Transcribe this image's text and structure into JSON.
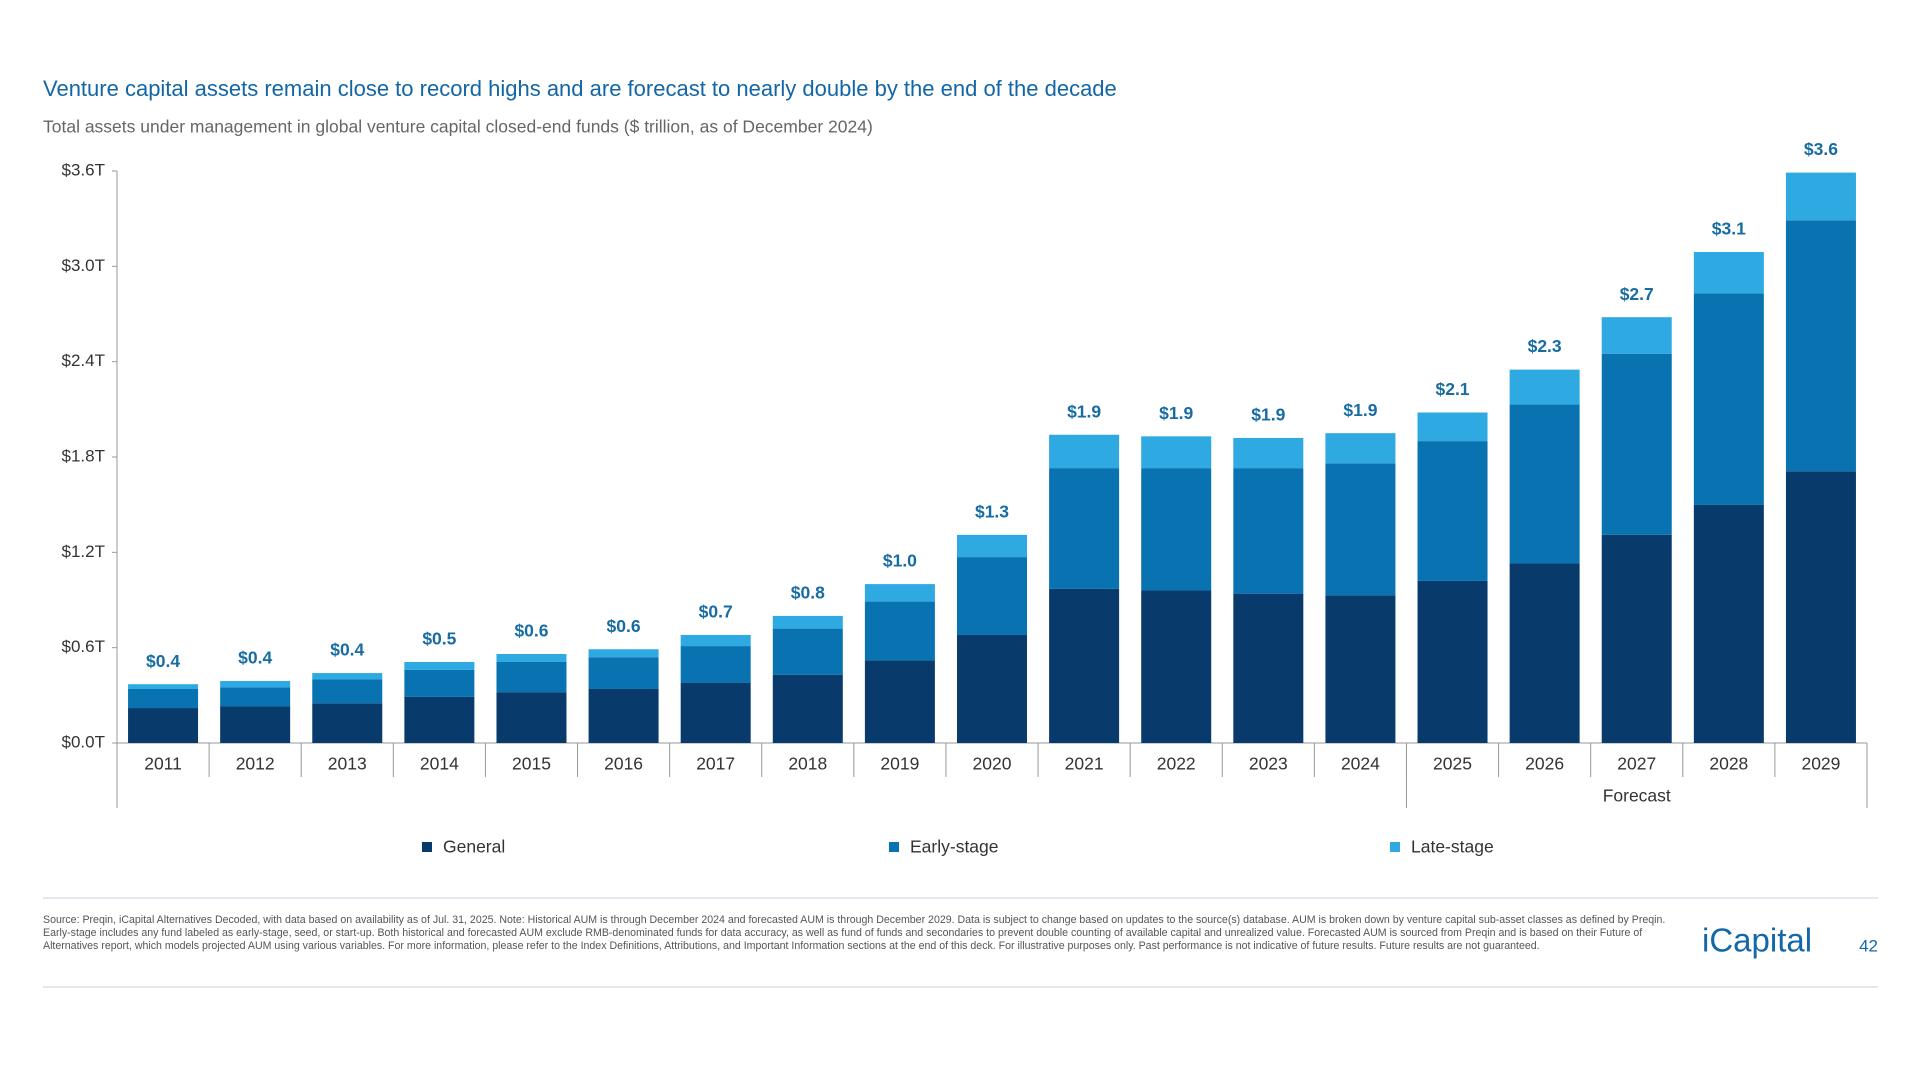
{
  "chart_data": {
    "type": "stacked_bar",
    "title": "Venture capital assets remain close to record highs and are forecast to nearly double by the end of the decade",
    "subtitle": "Total assets under management in global venture capital closed-end funds ($ trillion, as of December 2024)",
    "categories": [
      "2011",
      "2012",
      "2013",
      "2014",
      "2015",
      "2016",
      "2017",
      "2018",
      "2019",
      "2020",
      "2021",
      "2022",
      "2023",
      "2024",
      "2025",
      "2026",
      "2027",
      "2028",
      "2029"
    ],
    "series": [
      {
        "name": "General",
        "color": "#083a6c",
        "values": [
          0.22,
          0.23,
          0.25,
          0.29,
          0.32,
          0.34,
          0.38,
          0.43,
          0.52,
          0.68,
          0.97,
          0.96,
          0.94,
          0.93,
          1.02,
          1.13,
          1.31,
          1.5,
          1.71
        ]
      },
      {
        "name": "Early-stage",
        "color": "#0873b0",
        "values": [
          0.12,
          0.12,
          0.15,
          0.17,
          0.19,
          0.2,
          0.23,
          0.29,
          0.37,
          0.49,
          0.76,
          0.77,
          0.79,
          0.83,
          0.88,
          1.0,
          1.14,
          1.33,
          1.58
        ]
      },
      {
        "name": "Late-stage",
        "color": "#2ea9e1",
        "values": [
          0.03,
          0.04,
          0.04,
          0.05,
          0.05,
          0.05,
          0.07,
          0.08,
          0.11,
          0.14,
          0.21,
          0.2,
          0.19,
          0.19,
          0.18,
          0.22,
          0.23,
          0.26,
          0.3
        ]
      }
    ],
    "totals": {
      "values": [
        0.4,
        0.4,
        0.4,
        0.5,
        0.6,
        0.6,
        0.7,
        0.8,
        1.0,
        1.3,
        1.9,
        1.9,
        1.9,
        1.9,
        2.1,
        2.3,
        2.7,
        3.1,
        3.6
      ],
      "value_labels": [
        "$0.4",
        "$0.4",
        "$0.4",
        "$0.5",
        "$0.6",
        "$0.6",
        "$0.7",
        "$0.8",
        "$1.0",
        "$1.3",
        "$1.9",
        "$1.9",
        "$1.9",
        "$1.9",
        "$2.1",
        "$2.3",
        "$2.7",
        "$3.1",
        "$3.6"
      ]
    },
    "ylim": [
      0,
      3.6
    ],
    "yticks": [
      {
        "value": 0,
        "label": "$0.0T"
      },
      {
        "value": 0.6,
        "label": "$0.6T"
      },
      {
        "value": 1.2,
        "label": "$1.2T"
      },
      {
        "value": 1.8,
        "label": "$1.8T"
      },
      {
        "value": 2.4,
        "label": "$2.4T"
      },
      {
        "value": 3.0,
        "label": "$3.0T"
      },
      {
        "value": 3.6,
        "label": "$3.6T"
      }
    ],
    "grid": false,
    "legend": "bottom",
    "forecast": {
      "text": "Forecast",
      "first_category": "2025"
    }
  },
  "footnote": "Source: Preqin, iCapital Alternatives Decoded, with data based on availability as of Jul. 31, 2025. Note: Historical AUM is through December 2024 and forecasted AUM is through December 2029. Data is subject to change based on updates to the source(s) database. AUM is broken down by venture capital sub-asset classes as defined by Preqin. Early-stage includes any fund labeled as early-stage, seed, or start-up. Both historical and forecasted AUM exclude RMB-denominated funds for data accuracy, as well as fund of funds and secondaries to prevent double counting of available capital and unrealized value. Forecasted AUM is sourced from Preqin and is based on their Future of Alternatives report, which models projected AUM using various variables. For more information, please refer to the Index Definitions, Attributions, and Important Information sections at the end of this deck. For illustrative purposes only. Past performance is not indicative of future results. Future results are not guaranteed.",
  "logo": "iCapital",
  "page_number": "42"
}
